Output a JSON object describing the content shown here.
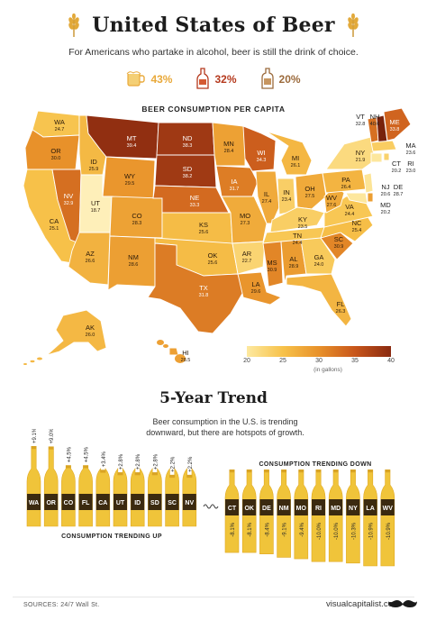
{
  "header": {
    "title": "United States of Beer",
    "subtitle": "For Americans who partake in alcohol, beer is still the drink of choice.",
    "stats": [
      {
        "value": "43%",
        "icon": "beer-mug-icon",
        "color": "#e9a93a"
      },
      {
        "value": "32%",
        "icon": "wine-bottle-icon",
        "color": "#b5391d"
      },
      {
        "value": "20%",
        "icon": "liquor-bottle-icon",
        "color": "#9b6a3c"
      }
    ]
  },
  "map": {
    "title": "BEER CONSUMPTION PER CAPITA",
    "legend_ticks": [
      "20",
      "25",
      "30",
      "35",
      "40"
    ],
    "legend_unit": "(in gallons)"
  },
  "trend": {
    "title": "5-Year Trend",
    "subtitle_line1": "Beer consumption in the U.S. is trending",
    "subtitle_line2": "downward, but there are hotspots of growth.",
    "up_label": "CONSUMPTION TRENDING UP",
    "down_label": "CONSUMPTION TRENDING DOWN"
  },
  "footer": {
    "sources": "SOURCES: 24/7 Wall St.",
    "brand": "visualcapitalist.com"
  },
  "chart_data": [
    {
      "type": "heatmap",
      "title": "BEER CONSUMPTION PER CAPITA",
      "unit": "(in gallons)",
      "scale_range": [
        20,
        40
      ],
      "states": [
        {
          "state": "WA",
          "value": 24.7
        },
        {
          "state": "OR",
          "value": 30.0
        },
        {
          "state": "CA",
          "value": 25.1
        },
        {
          "state": "NV",
          "value": 32.9
        },
        {
          "state": "ID",
          "value": 25.9
        },
        {
          "state": "MT",
          "value": 39.4
        },
        {
          "state": "WY",
          "value": 29.5
        },
        {
          "state": "UT",
          "value": 18.7
        },
        {
          "state": "AZ",
          "value": 26.6
        },
        {
          "state": "CO",
          "value": 28.3
        },
        {
          "state": "NM",
          "value": 28.6
        },
        {
          "state": "ND",
          "value": 38.3
        },
        {
          "state": "SD",
          "value": 38.2
        },
        {
          "state": "NE",
          "value": 33.3
        },
        {
          "state": "KS",
          "value": 25.6
        },
        {
          "state": "OK",
          "value": 25.6
        },
        {
          "state": "TX",
          "value": 31.8
        },
        {
          "state": "MN",
          "value": 28.4
        },
        {
          "state": "IA",
          "value": 31.7
        },
        {
          "state": "MO",
          "value": 27.3
        },
        {
          "state": "AR",
          "value": 22.7
        },
        {
          "state": "LA",
          "value": 29.6
        },
        {
          "state": "WI",
          "value": 34.3
        },
        {
          "state": "IL",
          "value": 27.4
        },
        {
          "state": "MI",
          "value": 26.1
        },
        {
          "state": "IN",
          "value": 23.4
        },
        {
          "state": "OH",
          "value": 27.5
        },
        {
          "state": "KY",
          "value": 23.5
        },
        {
          "state": "TN",
          "value": 24.4
        },
        {
          "state": "MS",
          "value": 30.9
        },
        {
          "state": "AL",
          "value": 28.9
        },
        {
          "state": "GA",
          "value": 24.0
        },
        {
          "state": "FL",
          "value": 26.3
        },
        {
          "state": "SC",
          "value": 30.9
        },
        {
          "state": "NC",
          "value": 25.4
        },
        {
          "state": "VA",
          "value": 24.4
        },
        {
          "state": "WV",
          "value": 27.6
        },
        {
          "state": "PA",
          "value": 26.4
        },
        {
          "state": "NY",
          "value": 21.9
        },
        {
          "state": "VT",
          "value": 32.8
        },
        {
          "state": "NH",
          "value": 40.6
        },
        {
          "state": "ME",
          "value": 33.8
        },
        {
          "state": "MA",
          "value": 23.6
        },
        {
          "state": "CT",
          "value": 20.2
        },
        {
          "state": "RI",
          "value": 23.0
        },
        {
          "state": "NJ",
          "value": 20.6
        },
        {
          "state": "DE",
          "value": 28.7
        },
        {
          "state": "MD",
          "value": 20.2
        },
        {
          "state": "AK",
          "value": 26.0
        },
        {
          "state": "HI",
          "value": 28.5
        }
      ]
    },
    {
      "type": "bar",
      "title": "CONSUMPTION TRENDING UP",
      "categories": [
        "WA",
        "OR",
        "CO",
        "FL",
        "CA",
        "UT",
        "ID",
        "SD",
        "SC",
        "NV"
      ],
      "values": [
        9.1,
        9.0,
        4.5,
        4.5,
        3.4,
        2.8,
        2.8,
        2.8,
        2.2,
        2.2
      ],
      "value_labels": [
        "+9.1%",
        "+9.0%",
        "+4.5%",
        "+4.5%",
        "+3.4%",
        "+2.8%",
        "+2.8%",
        "+2.8%",
        "+2.2%",
        "+2.2%"
      ]
    },
    {
      "type": "bar",
      "title": "CONSUMPTION TRENDING DOWN",
      "categories": [
        "CT",
        "OK",
        "DE",
        "NM",
        "MO",
        "RI",
        "MD",
        "NY",
        "LA",
        "WV"
      ],
      "values": [
        -8.1,
        -8.1,
        -8.4,
        -9.1,
        -9.4,
        -10.0,
        -10.0,
        -10.3,
        -10.9,
        -10.9
      ],
      "value_labels": [
        "-8.1%",
        "-8.1%",
        "-8.4%",
        "-9.1%",
        "-9.4%",
        "-10.0%",
        "-10.0%",
        "-10.3%",
        "-10.9%",
        "-10.9%"
      ]
    }
  ]
}
